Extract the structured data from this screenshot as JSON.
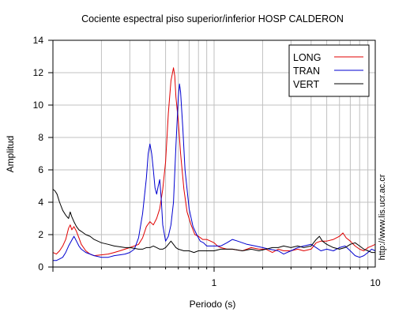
{
  "chart_data": {
    "type": "line",
    "title": "Cociente espectral piso superior/inferior  HOSP CALDERON",
    "xlabel": "Periodo (s)",
    "ylabel": "Amplitud",
    "xscale": "log",
    "xlim": [
      0.1,
      10
    ],
    "ylim": [
      0,
      14
    ],
    "x_tick_labels": [
      {
        "value": 1,
        "label": "1"
      },
      {
        "value": 10,
        "label": "10"
      }
    ],
    "y_ticks": [
      0,
      2,
      4,
      6,
      8,
      10,
      12,
      14
    ],
    "grid": true,
    "legend_position": "top-right",
    "annotation": "http://www.lis.ucr.ac.cr",
    "series": [
      {
        "name": "LONG",
        "color": "#e00000",
        "points": [
          [
            0.1,
            0.9
          ],
          [
            0.105,
            0.8
          ],
          [
            0.11,
            1.0
          ],
          [
            0.115,
            1.3
          ],
          [
            0.12,
            1.7
          ],
          [
            0.125,
            2.4
          ],
          [
            0.128,
            2.6
          ],
          [
            0.131,
            2.3
          ],
          [
            0.135,
            2.5
          ],
          [
            0.14,
            2.2
          ],
          [
            0.145,
            1.8
          ],
          [
            0.15,
            1.4
          ],
          [
            0.16,
            1.0
          ],
          [
            0.17,
            0.8
          ],
          [
            0.18,
            0.7
          ],
          [
            0.2,
            0.75
          ],
          [
            0.22,
            0.8
          ],
          [
            0.24,
            0.9
          ],
          [
            0.26,
            1.0
          ],
          [
            0.28,
            1.1
          ],
          [
            0.3,
            1.2
          ],
          [
            0.32,
            1.3
          ],
          [
            0.34,
            1.4
          ],
          [
            0.36,
            1.8
          ],
          [
            0.38,
            2.5
          ],
          [
            0.4,
            2.8
          ],
          [
            0.42,
            2.6
          ],
          [
            0.44,
            3.0
          ],
          [
            0.46,
            3.6
          ],
          [
            0.48,
            4.8
          ],
          [
            0.5,
            6.5
          ],
          [
            0.52,
            9.5
          ],
          [
            0.54,
            11.5
          ],
          [
            0.56,
            12.3
          ],
          [
            0.57,
            11.8
          ],
          [
            0.58,
            10.5
          ],
          [
            0.6,
            9.0
          ],
          [
            0.62,
            7.0
          ],
          [
            0.65,
            4.8
          ],
          [
            0.68,
            3.4
          ],
          [
            0.72,
            2.6
          ],
          [
            0.76,
            2.0
          ],
          [
            0.8,
            1.9
          ],
          [
            0.85,
            1.7
          ],
          [
            0.9,
            1.7
          ],
          [
            0.95,
            1.6
          ],
          [
            1.0,
            1.5
          ],
          [
            1.05,
            1.3
          ],
          [
            1.1,
            1.2
          ],
          [
            1.2,
            1.1
          ],
          [
            1.3,
            1.1
          ],
          [
            1.5,
            1.0
          ],
          [
            1.7,
            1.2
          ],
          [
            1.9,
            1.1
          ],
          [
            2.1,
            1.1
          ],
          [
            2.3,
            0.9
          ],
          [
            2.5,
            1.1
          ],
          [
            2.7,
            1.0
          ],
          [
            3.0,
            1.0
          ],
          [
            3.3,
            1.1
          ],
          [
            3.6,
            1.0
          ],
          [
            4.0,
            1.1
          ],
          [
            4.3,
            1.5
          ],
          [
            4.6,
            1.6
          ],
          [
            5.0,
            1.6
          ],
          [
            5.5,
            1.7
          ],
          [
            6.0,
            1.9
          ],
          [
            6.3,
            2.1
          ],
          [
            6.6,
            1.8
          ],
          [
            7.0,
            1.6
          ],
          [
            7.5,
            1.3
          ],
          [
            8.0,
            1.1
          ],
          [
            8.5,
            1.0
          ],
          [
            9.0,
            1.2
          ],
          [
            9.5,
            1.3
          ],
          [
            10.0,
            1.4
          ]
        ]
      },
      {
        "name": "TRAN",
        "color": "#0000d0",
        "points": [
          [
            0.1,
            0.4
          ],
          [
            0.105,
            0.4
          ],
          [
            0.11,
            0.5
          ],
          [
            0.115,
            0.6
          ],
          [
            0.12,
            0.9
          ],
          [
            0.125,
            1.3
          ],
          [
            0.13,
            1.6
          ],
          [
            0.135,
            1.9
          ],
          [
            0.14,
            1.6
          ],
          [
            0.145,
            1.3
          ],
          [
            0.15,
            1.1
          ],
          [
            0.16,
            0.9
          ],
          [
            0.17,
            0.8
          ],
          [
            0.18,
            0.7
          ],
          [
            0.2,
            0.6
          ],
          [
            0.22,
            0.6
          ],
          [
            0.24,
            0.7
          ],
          [
            0.26,
            0.75
          ],
          [
            0.28,
            0.8
          ],
          [
            0.3,
            0.9
          ],
          [
            0.32,
            1.1
          ],
          [
            0.34,
            1.8
          ],
          [
            0.36,
            3.3
          ],
          [
            0.38,
            5.5
          ],
          [
            0.39,
            7.0
          ],
          [
            0.4,
            7.6
          ],
          [
            0.41,
            7.0
          ],
          [
            0.42,
            6.0
          ],
          [
            0.43,
            4.9
          ],
          [
            0.44,
            4.5
          ],
          [
            0.45,
            5.0
          ],
          [
            0.46,
            5.4
          ],
          [
            0.47,
            4.2
          ],
          [
            0.48,
            2.6
          ],
          [
            0.5,
            1.6
          ],
          [
            0.52,
            1.9
          ],
          [
            0.54,
            2.6
          ],
          [
            0.56,
            4.0
          ],
          [
            0.58,
            7.5
          ],
          [
            0.6,
            10.5
          ],
          [
            0.61,
            11.3
          ],
          [
            0.62,
            10.8
          ],
          [
            0.64,
            8.5
          ],
          [
            0.66,
            6.0
          ],
          [
            0.7,
            3.6
          ],
          [
            0.74,
            2.5
          ],
          [
            0.78,
            2.0
          ],
          [
            0.82,
            1.6
          ],
          [
            0.86,
            1.5
          ],
          [
            0.9,
            1.3
          ],
          [
            0.95,
            1.3
          ],
          [
            1.0,
            1.3
          ],
          [
            1.1,
            1.3
          ],
          [
            1.2,
            1.5
          ],
          [
            1.3,
            1.7
          ],
          [
            1.4,
            1.6
          ],
          [
            1.6,
            1.4
          ],
          [
            1.8,
            1.3
          ],
          [
            2.0,
            1.2
          ],
          [
            2.2,
            1.1
          ],
          [
            2.5,
            1.0
          ],
          [
            2.7,
            0.8
          ],
          [
            3.0,
            1.0
          ],
          [
            3.3,
            1.2
          ],
          [
            3.6,
            1.3
          ],
          [
            4.0,
            1.4
          ],
          [
            4.3,
            1.2
          ],
          [
            4.6,
            1.0
          ],
          [
            5.0,
            1.1
          ],
          [
            5.5,
            1.0
          ],
          [
            6.0,
            1.2
          ],
          [
            6.5,
            1.3
          ],
          [
            7.0,
            1.0
          ],
          [
            7.5,
            0.7
          ],
          [
            8.0,
            0.6
          ],
          [
            8.5,
            0.7
          ],
          [
            9.0,
            0.9
          ],
          [
            9.5,
            1.1
          ],
          [
            10.0,
            1.0
          ]
        ]
      },
      {
        "name": "VERT",
        "color": "#000000",
        "points": [
          [
            0.1,
            4.8
          ],
          [
            0.103,
            4.7
          ],
          [
            0.106,
            4.5
          ],
          [
            0.11,
            4.0
          ],
          [
            0.115,
            3.5
          ],
          [
            0.12,
            3.2
          ],
          [
            0.125,
            3.0
          ],
          [
            0.128,
            3.4
          ],
          [
            0.131,
            3.1
          ],
          [
            0.135,
            2.8
          ],
          [
            0.14,
            2.5
          ],
          [
            0.145,
            2.3
          ],
          [
            0.15,
            2.2
          ],
          [
            0.16,
            2.0
          ],
          [
            0.17,
            1.9
          ],
          [
            0.18,
            1.7
          ],
          [
            0.2,
            1.5
          ],
          [
            0.22,
            1.4
          ],
          [
            0.24,
            1.3
          ],
          [
            0.26,
            1.25
          ],
          [
            0.28,
            1.2
          ],
          [
            0.3,
            1.2
          ],
          [
            0.32,
            1.15
          ],
          [
            0.34,
            1.1
          ],
          [
            0.36,
            1.1
          ],
          [
            0.38,
            1.2
          ],
          [
            0.4,
            1.2
          ],
          [
            0.42,
            1.3
          ],
          [
            0.44,
            1.2
          ],
          [
            0.46,
            1.1
          ],
          [
            0.48,
            1.1
          ],
          [
            0.5,
            1.2
          ],
          [
            0.52,
            1.4
          ],
          [
            0.54,
            1.6
          ],
          [
            0.56,
            1.4
          ],
          [
            0.58,
            1.2
          ],
          [
            0.6,
            1.1
          ],
          [
            0.65,
            1.0
          ],
          [
            0.7,
            1.0
          ],
          [
            0.75,
            0.9
          ],
          [
            0.8,
            1.0
          ],
          [
            0.9,
            1.0
          ],
          [
            1.0,
            1.0
          ],
          [
            1.1,
            1.1
          ],
          [
            1.2,
            1.1
          ],
          [
            1.3,
            1.1
          ],
          [
            1.5,
            1.0
          ],
          [
            1.7,
            1.1
          ],
          [
            1.9,
            1.0
          ],
          [
            2.1,
            1.1
          ],
          [
            2.3,
            1.2
          ],
          [
            2.5,
            1.2
          ],
          [
            2.7,
            1.3
          ],
          [
            3.0,
            1.2
          ],
          [
            3.3,
            1.3
          ],
          [
            3.6,
            1.2
          ],
          [
            4.0,
            1.3
          ],
          [
            4.3,
            1.7
          ],
          [
            4.5,
            1.9
          ],
          [
            4.7,
            1.6
          ],
          [
            5.0,
            1.4
          ],
          [
            5.5,
            1.2
          ],
          [
            6.0,
            1.1
          ],
          [
            6.5,
            1.2
          ],
          [
            7.0,
            1.4
          ],
          [
            7.5,
            1.5
          ],
          [
            8.0,
            1.3
          ],
          [
            8.5,
            1.1
          ],
          [
            9.0,
            1.0
          ],
          [
            9.5,
            0.9
          ],
          [
            10.0,
            0.9
          ]
        ]
      }
    ]
  }
}
